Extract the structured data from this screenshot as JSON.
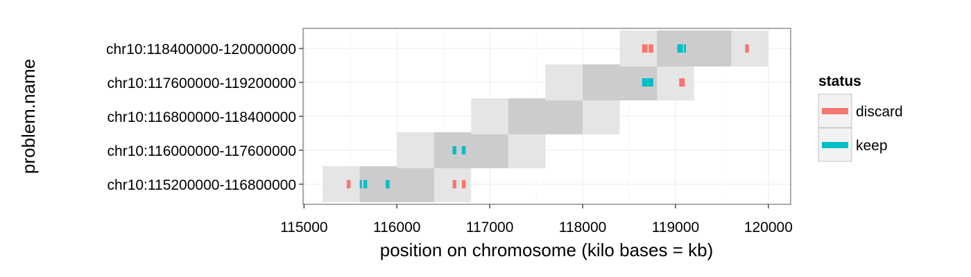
{
  "chart_data": {
    "type": "range",
    "title": "",
    "xlabel": "position on chromosome (kilo bases = kb)",
    "ylabel": "problem.name",
    "xlim": [
      114990,
      120240
    ],
    "xticks": [
      115000,
      116000,
      117000,
      118000,
      119000,
      120000
    ],
    "xtick_labels": [
      "115000",
      "116000",
      "117000",
      "118000",
      "119000",
      "120000"
    ],
    "grid": true,
    "legend": {
      "title": "status",
      "position": "right",
      "entries": [
        {
          "label": "discard",
          "color": "#F8766D"
        },
        {
          "label": "keep",
          "color": "#00BFC4"
        }
      ]
    },
    "categories": [
      "chr10:115200000-116800000",
      "chr10:116000000-117600000",
      "chr10:116800000-118400000",
      "chr10:117600000-119200000",
      "chr10:118400000-120000000"
    ],
    "problems": [
      {
        "name": "chr10:115200000-116800000",
        "outer": [
          115200,
          116800
        ],
        "inner": [
          115600,
          116400
        ]
      },
      {
        "name": "chr10:116000000-117600000",
        "outer": [
          116000,
          117600
        ],
        "inner": [
          116400,
          117200
        ]
      },
      {
        "name": "chr10:116800000-118400000",
        "outer": [
          116800,
          118400
        ],
        "inner": [
          117200,
          118000
        ]
      },
      {
        "name": "chr10:117600000-119200000",
        "outer": [
          117600,
          119200
        ],
        "inner": [
          118000,
          118800
        ]
      },
      {
        "name": "chr10:118400000-120000000",
        "outer": [
          118400,
          120000
        ],
        "inner": [
          118800,
          119600
        ]
      }
    ],
    "peaks": [
      {
        "problem": "chr10:115200000-116800000",
        "status": "discard",
        "start": 115460,
        "end": 115500
      },
      {
        "problem": "chr10:115200000-116800000",
        "status": "keep",
        "start": 115600,
        "end": 115620
      },
      {
        "problem": "chr10:115200000-116800000",
        "status": "keep",
        "start": 115640,
        "end": 115680
      },
      {
        "problem": "chr10:115200000-116800000",
        "status": "keep",
        "start": 115880,
        "end": 115920
      },
      {
        "problem": "chr10:115200000-116800000",
        "status": "discard",
        "start": 116600,
        "end": 116640
      },
      {
        "problem": "chr10:115200000-116800000",
        "status": "discard",
        "start": 116700,
        "end": 116740
      },
      {
        "problem": "chr10:116000000-117600000",
        "status": "keep",
        "start": 116600,
        "end": 116640
      },
      {
        "problem": "chr10:116000000-117600000",
        "status": "keep",
        "start": 116700,
        "end": 116740
      },
      {
        "problem": "chr10:117600000-119200000",
        "status": "keep",
        "start": 118640,
        "end": 118700
      },
      {
        "problem": "chr10:117600000-119200000",
        "status": "keep",
        "start": 118700,
        "end": 118760
      },
      {
        "problem": "chr10:117600000-119200000",
        "status": "discard",
        "start": 119040,
        "end": 119100
      },
      {
        "problem": "chr10:118400000-120000000",
        "status": "discard",
        "start": 118640,
        "end": 118700
      },
      {
        "problem": "chr10:118400000-120000000",
        "status": "discard",
        "start": 118710,
        "end": 118760
      },
      {
        "problem": "chr10:118400000-120000000",
        "status": "keep",
        "start": 119020,
        "end": 119080
      },
      {
        "problem": "chr10:118400000-120000000",
        "status": "keep",
        "start": 119090,
        "end": 119110
      },
      {
        "problem": "chr10:118400000-120000000",
        "status": "discard",
        "start": 119750,
        "end": 119790
      }
    ]
  }
}
